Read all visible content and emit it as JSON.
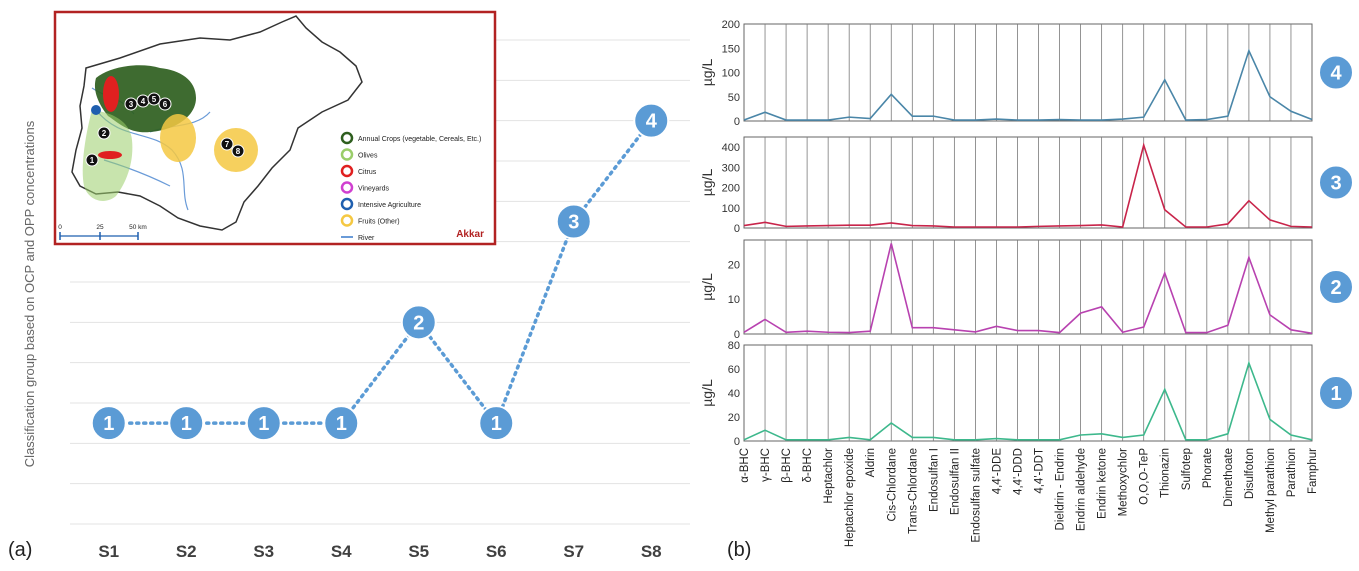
{
  "panel_labels": {
    "a": "(a)",
    "b": "(b)"
  },
  "colors": {
    "marker": "#5B9BD5",
    "marker_text": "#ffffff",
    "grid": "#e3e3e3",
    "inset_border": "#b22222",
    "sample_ids": "#404040",
    "series": {
      "4": "#4A86A8",
      "3": "#C8244A",
      "2": "#B842B0",
      "1": "#3DB88C"
    }
  },
  "chart_data": [
    {
      "type": "line",
      "panel": "(a)",
      "ylabel": "Classification group based on OCP and OPP concentrations",
      "categories": [
        "S1",
        "S2",
        "S3",
        "S4",
        "S5",
        "S6",
        "S7",
        "S8"
      ],
      "values": [
        1,
        1,
        1,
        1,
        2,
        1,
        3,
        4
      ],
      "ylim": [
        0,
        4.8
      ],
      "grid": true,
      "line_style": "dotted",
      "inset_map": {
        "title": "Akkar",
        "legend": [
          {
            "label": "Annual Crops (vegetable, Cereals, Etc.)",
            "color": "#2E5E1E"
          },
          {
            "label": "Olives",
            "color": "#9ACD6A"
          },
          {
            "label": "Citrus",
            "color": "#E02020"
          },
          {
            "label": "Vineyards",
            "color": "#D040D0"
          },
          {
            "label": "Intensive Agriculture",
            "color": "#1F5FAF"
          },
          {
            "label": "Fruits (Other)",
            "color": "#F5C842"
          },
          {
            "label": "River",
            "color": "#6A9BD8"
          }
        ],
        "scale_ticks": [
          "0",
          "25",
          "50 km"
        ],
        "sites": [
          "1",
          "2",
          "3",
          "4",
          "5",
          "6",
          "7",
          "8"
        ]
      }
    },
    {
      "type": "line",
      "panel": "(b)",
      "categories": [
        "α-BHC",
        "γ-BHC",
        "β-BHC",
        "δ-BHC",
        "Heptachlor",
        "Heptachlor epoxide",
        "Aldrin",
        "Cis-Chlordane",
        "Trans-Chlordane",
        "Endosulfan I",
        "Endosulfan II",
        "Endosulfan sulfate",
        "4,4'-DDE",
        "4,4'-DDD",
        "4,4'-DDT",
        "Dieldrin - Endrin",
        "Endrin aldehyde",
        "Endrin ketone",
        "Methoxychlor",
        "O,O,O-TeP",
        "Thionazin",
        "Sulfotep",
        "Phorate",
        "Dimethoate",
        "Disulfoton",
        "Methyl parathion",
        "Parathion",
        "Famphur"
      ],
      "facets": [
        {
          "group": "4",
          "ylabel": "µg/L",
          "ylim": [
            0,
            200
          ],
          "yticks": [
            0,
            50,
            100,
            150,
            200
          ],
          "values": [
            2,
            18,
            2,
            2,
            2,
            8,
            5,
            55,
            10,
            10,
            2,
            2,
            4,
            2,
            2,
            3,
            2,
            2,
            4,
            8,
            85,
            2,
            3,
            10,
            145,
            50,
            20,
            3
          ]
        },
        {
          "group": "3",
          "ylabel": "µg/L",
          "ylim": [
            0,
            450
          ],
          "yticks": [
            0,
            100,
            200,
            300,
            400
          ],
          "values": [
            12,
            28,
            8,
            10,
            12,
            14,
            14,
            25,
            12,
            10,
            5,
            5,
            5,
            5,
            8,
            10,
            12,
            15,
            5,
            410,
            90,
            5,
            5,
            20,
            135,
            40,
            8,
            5
          ]
        },
        {
          "group": "2",
          "ylabel": "µg/L",
          "ylim": [
            0,
            27
          ],
          "yticks": [
            0,
            10,
            20
          ],
          "values": [
            0.5,
            4.2,
            0.5,
            0.8,
            0.5,
            0.4,
            0.8,
            26,
            1.8,
            1.8,
            1.2,
            0.6,
            2.2,
            1.0,
            1.0,
            0.4,
            6.0,
            7.8,
            0.5,
            2.0,
            17.5,
            0.4,
            0.4,
            2.5,
            22,
            5.5,
            1.2,
            0.2
          ]
        },
        {
          "group": "1",
          "ylabel": "µg/L",
          "ylim": [
            0,
            80
          ],
          "yticks": [
            0,
            20,
            40,
            60,
            80
          ],
          "values": [
            1,
            9,
            1,
            1,
            1,
            3,
            1,
            15,
            3,
            3,
            1,
            1,
            2,
            1,
            1,
            1,
            5,
            6,
            3,
            5,
            43,
            1,
            1,
            6,
            65,
            18,
            5,
            1
          ]
        }
      ]
    }
  ]
}
